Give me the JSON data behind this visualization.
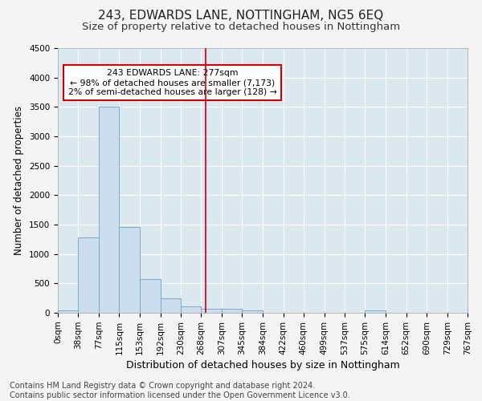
{
  "title": "243, EDWARDS LANE, NOTTINGHAM, NG5 6EQ",
  "subtitle": "Size of property relative to detached houses in Nottingham",
  "xlabel": "Distribution of detached houses by size in Nottingham",
  "ylabel": "Number of detached properties",
  "footer_line1": "Contains HM Land Registry data © Crown copyright and database right 2024.",
  "footer_line2": "Contains public sector information licensed under the Open Government Licence v3.0.",
  "bar_edges": [
    0,
    38,
    77,
    115,
    153,
    192,
    230,
    268,
    307,
    345,
    384,
    422,
    460,
    499,
    537,
    575,
    614,
    652,
    690,
    729,
    767
  ],
  "bar_heights": [
    40,
    1280,
    3500,
    1460,
    575,
    240,
    115,
    75,
    75,
    45,
    0,
    0,
    0,
    0,
    0,
    45,
    0,
    0,
    0,
    0
  ],
  "bar_color": "#ccdded",
  "bar_edge_color": "#7aaac8",
  "property_line_x": 277,
  "property_line_color": "#cc0000",
  "annotation_text": "243 EDWARDS LANE: 277sqm\n← 98% of detached houses are smaller (7,173)\n2% of semi-detached houses are larger (128) →",
  "annotation_box_color": "#ffffff",
  "annotation_box_edge_color": "#cc0000",
  "ylim": [
    0,
    4500
  ],
  "yticks": [
    0,
    500,
    1000,
    1500,
    2000,
    2500,
    3000,
    3500,
    4000,
    4500
  ],
  "background_color": "#dce8f0",
  "fig_background_color": "#f4f4f4",
  "grid_color": "#ffffff",
  "title_fontsize": 11,
  "subtitle_fontsize": 9.5,
  "axis_label_fontsize": 8.5,
  "tick_fontsize": 7.5,
  "footer_fontsize": 7
}
